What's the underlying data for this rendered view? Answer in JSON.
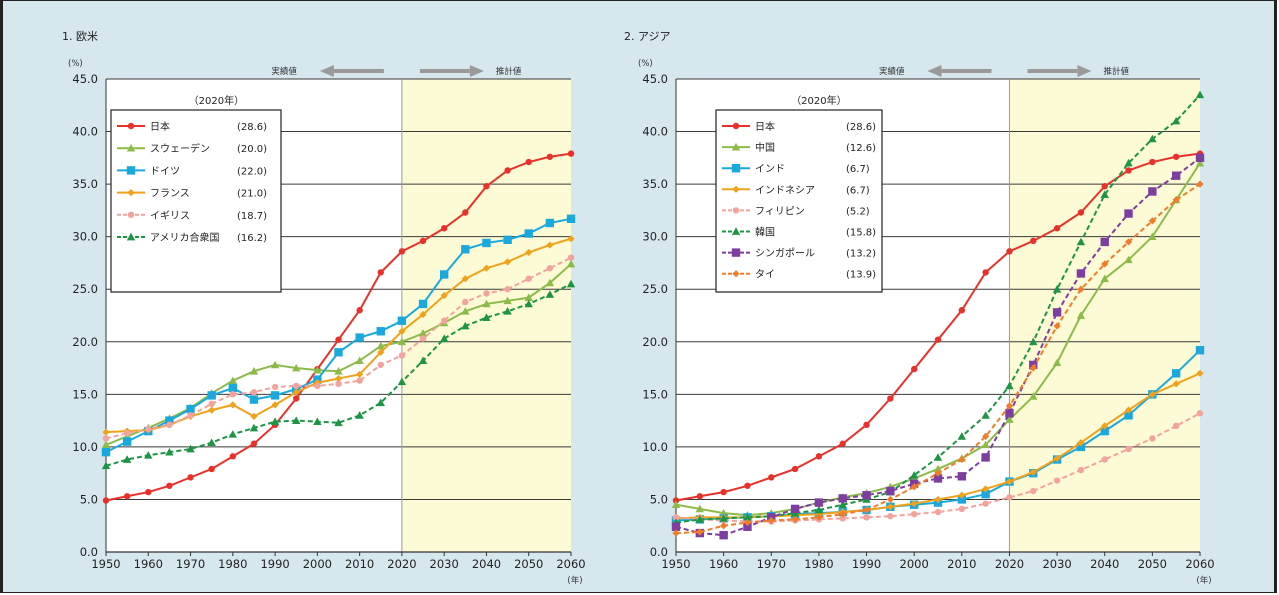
{
  "chart_data": [
    {
      "type": "line",
      "title": "1. 欧米",
      "ylabel_unit": "(%)",
      "xlabel_unit": "(年)",
      "ylim": [
        0,
        45
      ],
      "xlim": [
        1950,
        2060
      ],
      "yticks": [
        "0.0",
        "5.0",
        "10.0",
        "15.0",
        "20.0",
        "25.0",
        "30.0",
        "35.0",
        "40.0",
        "45.0"
      ],
      "xticks": [
        "1950",
        "1960",
        "1970",
        "1980",
        "1990",
        "2000",
        "2010",
        "2020",
        "2030",
        "2040",
        "2050",
        "2060"
      ],
      "split_year": 2020,
      "actual_label": "実績値",
      "projected_label": "推計値",
      "legend_title": "（2020年）",
      "x": [
        1950,
        1955,
        1960,
        1965,
        1970,
        1975,
        1980,
        1985,
        1990,
        1995,
        2000,
        2005,
        2010,
        2015,
        2020,
        2025,
        2030,
        2035,
        2040,
        2045,
        2050,
        2055,
        2060
      ],
      "series": [
        {
          "name": "日本",
          "legend_value": "(28.6)",
          "color": "#e8312a",
          "marker": "circle",
          "dash": false,
          "values": [
            4.9,
            5.3,
            5.7,
            6.3,
            7.1,
            7.9,
            9.1,
            10.3,
            12.1,
            14.6,
            17.4,
            20.2,
            23.0,
            26.6,
            28.6,
            29.6,
            30.8,
            32.3,
            34.8,
            36.3,
            37.1,
            37.6,
            37.9
          ]
        },
        {
          "name": "スウェーデン",
          "legend_value": "(20.0)",
          "color": "#8dbb4a",
          "marker": "triangle",
          "dash": false,
          "values": [
            10.2,
            11.0,
            11.8,
            12.7,
            13.7,
            15.1,
            16.3,
            17.2,
            17.8,
            17.5,
            17.3,
            17.2,
            18.2,
            19.6,
            20.0,
            20.8,
            21.8,
            22.9,
            23.6,
            23.9,
            24.2,
            25.6,
            27.4
          ]
        },
        {
          "name": "ドイツ",
          "legend_value": "(22.0)",
          "color": "#1ba8dd",
          "marker": "square",
          "dash": false,
          "values": [
            9.5,
            10.5,
            11.5,
            12.5,
            13.6,
            14.9,
            15.6,
            14.5,
            14.9,
            15.5,
            16.4,
            19.0,
            20.4,
            21.0,
            22.0,
            23.6,
            26.4,
            28.8,
            29.4,
            29.7,
            30.3,
            31.3,
            31.7
          ]
        },
        {
          "name": "フランス",
          "legend_value": "(21.0)",
          "color": "#f0a21b",
          "marker": "diamond",
          "dash": false,
          "values": [
            11.4,
            11.5,
            11.6,
            12.1,
            12.9,
            13.5,
            14.0,
            12.9,
            14.0,
            15.2,
            16.1,
            16.5,
            16.9,
            19.0,
            21.0,
            22.6,
            24.4,
            26.0,
            27.0,
            27.6,
            28.5,
            29.2,
            29.8
          ]
        },
        {
          "name": "イギリス",
          "legend_value": "(18.7)",
          "color": "#f2a39d",
          "marker": "circle",
          "dash": true,
          "values": [
            10.8,
            11.3,
            11.7,
            12.1,
            13.0,
            14.1,
            15.0,
            15.2,
            15.7,
            15.8,
            15.8,
            16.0,
            16.3,
            17.8,
            18.7,
            20.3,
            22.0,
            23.8,
            24.6,
            25.0,
            26.0,
            27.0,
            28.0
          ]
        },
        {
          "name": "アメリカ合衆国",
          "legend_value": "(16.2)",
          "color": "#1e9445",
          "marker": "triangle",
          "dash": true,
          "values": [
            8.2,
            8.8,
            9.2,
            9.5,
            9.8,
            10.4,
            11.2,
            11.8,
            12.4,
            12.5,
            12.4,
            12.3,
            13.0,
            14.2,
            16.2,
            18.2,
            20.3,
            21.5,
            22.3,
            22.9,
            23.6,
            24.5,
            25.5
          ]
        }
      ]
    },
    {
      "type": "line",
      "title": "2. アジア",
      "ylabel_unit": "(%)",
      "xlabel_unit": "(年)",
      "ylim": [
        0,
        45
      ],
      "xlim": [
        1950,
        2060
      ],
      "yticks": [
        "0.0",
        "5.0",
        "10.0",
        "15.0",
        "20.0",
        "25.0",
        "30.0",
        "35.0",
        "40.0",
        "45.0"
      ],
      "xticks": [
        "1950",
        "1960",
        "1970",
        "1980",
        "1990",
        "2000",
        "2010",
        "2020",
        "2030",
        "2040",
        "2050",
        "2060"
      ],
      "split_year": 2020,
      "actual_label": "実績値",
      "projected_label": "推計値",
      "legend_title": "（2020年）",
      "x": [
        1950,
        1955,
        1960,
        1965,
        1970,
        1975,
        1980,
        1985,
        1990,
        1995,
        2000,
        2005,
        2010,
        2015,
        2020,
        2025,
        2030,
        2035,
        2040,
        2045,
        2050,
        2055,
        2060
      ],
      "series": [
        {
          "name": "日本",
          "legend_value": "(28.6)",
          "color": "#e8312a",
          "marker": "circle",
          "dash": false,
          "values": [
            4.9,
            5.3,
            5.7,
            6.3,
            7.1,
            7.9,
            9.1,
            10.3,
            12.1,
            14.6,
            17.4,
            20.2,
            23.0,
            26.6,
            28.6,
            29.6,
            30.8,
            32.3,
            34.8,
            36.3,
            37.1,
            37.6,
            37.9
          ]
        },
        {
          "name": "中国",
          "legend_value": "(12.6)",
          "color": "#8dbb4a",
          "marker": "triangle",
          "dash": false,
          "values": [
            4.5,
            4.1,
            3.7,
            3.5,
            3.7,
            4.1,
            4.7,
            5.2,
            5.6,
            6.2,
            7.0,
            7.9,
            8.9,
            10.2,
            12.6,
            14.8,
            18.0,
            22.5,
            26.0,
            27.8,
            30.0,
            33.5,
            37.0
          ]
        },
        {
          "name": "インド",
          "legend_value": "(6.7)",
          "color": "#1ba8dd",
          "marker": "square",
          "dash": false,
          "values": [
            3.0,
            3.1,
            3.2,
            3.3,
            3.4,
            3.6,
            3.7,
            3.8,
            4.0,
            4.3,
            4.5,
            4.7,
            5.0,
            5.5,
            6.7,
            7.5,
            8.8,
            10.0,
            11.5,
            13.0,
            15.0,
            17.0,
            19.2
          ]
        },
        {
          "name": "インドネシア",
          "legend_value": "(6.7)",
          "color": "#f0a21b",
          "marker": "diamond",
          "dash": false,
          "values": [
            3.2,
            3.3,
            3.3,
            3.3,
            3.4,
            3.5,
            3.6,
            3.8,
            4.0,
            4.3,
            4.6,
            5.0,
            5.4,
            6.0,
            6.7,
            7.6,
            8.9,
            10.4,
            12.0,
            13.5,
            15.0,
            16.0,
            17.0
          ]
        },
        {
          "name": "フィリピン",
          "legend_value": "(5.2)",
          "color": "#f2a39d",
          "marker": "circle",
          "dash": true,
          "values": [
            3.3,
            3.1,
            3.0,
            2.9,
            2.9,
            3.0,
            3.1,
            3.2,
            3.3,
            3.4,
            3.6,
            3.8,
            4.1,
            4.6,
            5.2,
            5.8,
            6.8,
            7.8,
            8.8,
            9.8,
            10.8,
            12.0,
            13.2
          ]
        },
        {
          "name": "韓国",
          "legend_value": "(15.8)",
          "color": "#1e9445",
          "marker": "triangle",
          "dash": true,
          "values": [
            2.8,
            3.1,
            3.2,
            3.3,
            3.4,
            3.7,
            4.0,
            4.5,
            5.0,
            5.7,
            7.3,
            9.0,
            11.0,
            13.0,
            15.8,
            20.0,
            25.0,
            29.5,
            34.0,
            37.0,
            39.3,
            41.0,
            43.5
          ]
        },
        {
          "name": "シンガポール",
          "legend_value": "(13.2)",
          "color": "#7e3ea0",
          "marker": "square",
          "dash": true,
          "values": [
            2.4,
            1.8,
            1.6,
            2.4,
            3.3,
            4.1,
            4.7,
            5.1,
            5.4,
            5.8,
            6.5,
            7.0,
            7.2,
            9.0,
            13.2,
            17.8,
            22.8,
            26.5,
            29.5,
            32.2,
            34.3,
            35.8,
            37.5
          ]
        },
        {
          "name": "タイ",
          "legend_value": "(13.9)",
          "color": "#f07d2a",
          "marker": "diamond",
          "dash": true,
          "values": [
            1.8,
            1.9,
            2.5,
            2.8,
            3.0,
            3.1,
            3.3,
            3.6,
            4.0,
            5.0,
            6.2,
            7.5,
            8.8,
            11.0,
            13.9,
            17.5,
            21.5,
            25.0,
            27.4,
            29.5,
            31.5,
            33.5,
            35.0
          ]
        }
      ]
    }
  ]
}
